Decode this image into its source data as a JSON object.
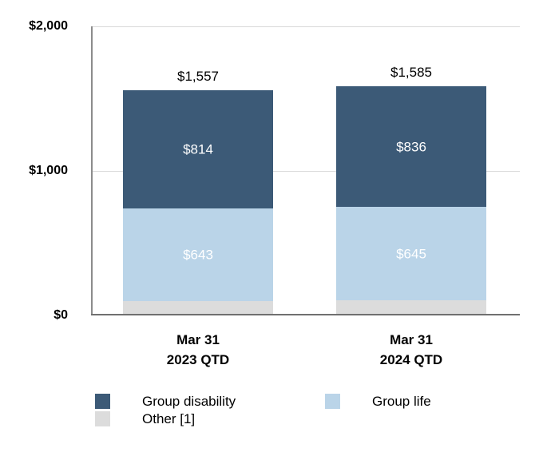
{
  "chart_data": {
    "type": "bar",
    "stacked": true,
    "title": "",
    "xlabel": "",
    "ylabel": "",
    "categories": [
      [
        "Mar 31",
        "2023 QTD"
      ],
      [
        "Mar 31",
        "2024 QTD"
      ]
    ],
    "series": [
      {
        "name": "Other [1]",
        "color": "#dcdcdc",
        "values": [
          100,
          104
        ],
        "labels": [
          "",
          ""
        ]
      },
      {
        "name": "Group life",
        "color": "#bad4e8",
        "values": [
          643,
          645
        ],
        "labels": [
          "$643",
          "$645"
        ]
      },
      {
        "name": "Group disability",
        "color": "#3c5a77",
        "values": [
          814,
          836
        ],
        "labels": [
          "$814",
          "$836"
        ]
      }
    ],
    "totals": [
      1557,
      1585
    ],
    "total_labels": [
      "$1,557",
      "$1,585"
    ],
    "ylim": [
      0,
      2000
    ],
    "y_ticks": [
      {
        "value": 2000,
        "label": "$2,000"
      },
      {
        "value": 1000,
        "label": "$1,000"
      },
      {
        "value": 0,
        "label": "$0"
      }
    ],
    "gridlines": [
      2000,
      1000
    ],
    "grid": true,
    "legend_position": "bottom",
    "legend_columns": [
      [
        {
          "label": "Group disability",
          "color": "#3c5a77"
        },
        {
          "label": "Other [1]",
          "color": "#dcdcdc"
        }
      ],
      [
        {
          "label": "Group life",
          "color": "#bad4e8"
        }
      ]
    ]
  },
  "colors": {
    "group_disability": "#3c5a77",
    "group_life": "#bad4e8",
    "other": "#dcdcdc",
    "axis": "#707070",
    "gridline": "#d9d9d9",
    "background": "#ffffff",
    "bar_value_text": "#ffffff",
    "text": "#000000"
  }
}
